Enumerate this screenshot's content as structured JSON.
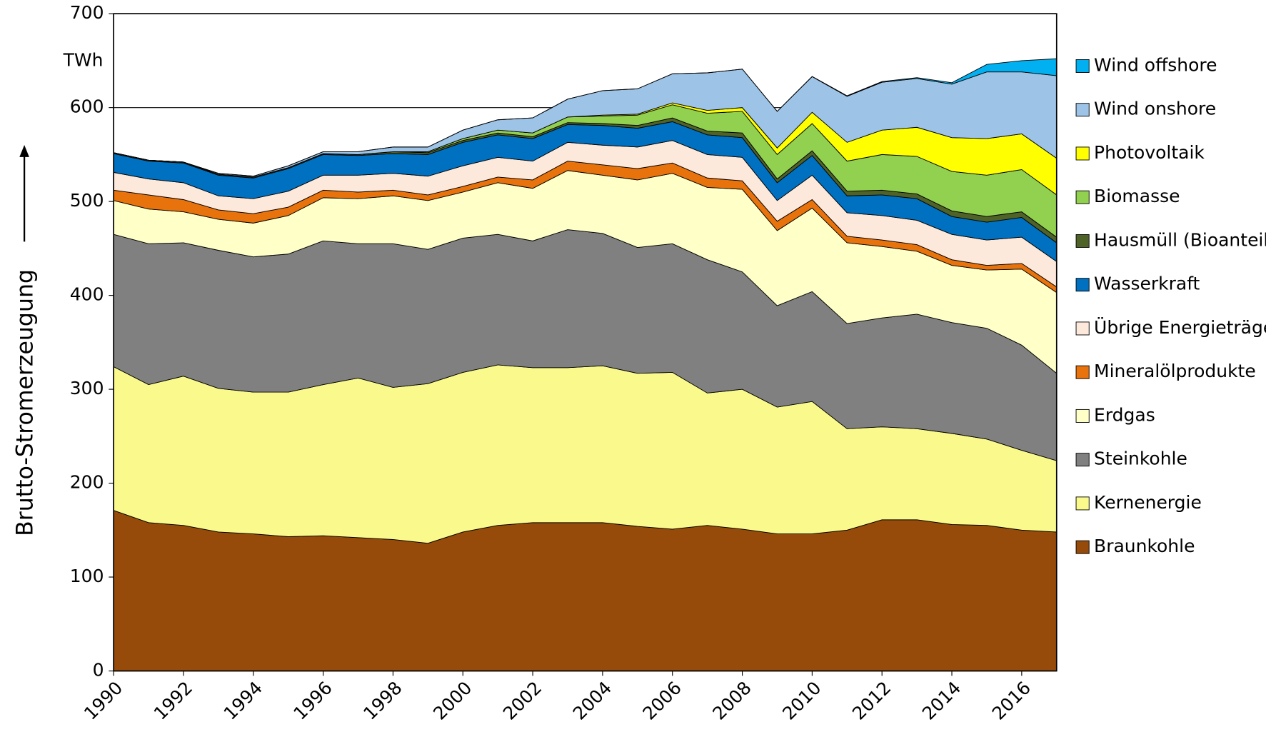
{
  "chart_data": {
    "type": "stacked-area",
    "y_label": "Brutto-Stromerzeugung",
    "unit": "TWh",
    "x": [
      1990,
      1991,
      1992,
      1993,
      1994,
      1995,
      1996,
      1997,
      1998,
      1999,
      2000,
      2001,
      2002,
      2003,
      2004,
      2005,
      2006,
      2007,
      2008,
      2009,
      2010,
      2011,
      2012,
      2013,
      2014,
      2015,
      2016,
      2017
    ],
    "xlim": [
      1990,
      2017
    ],
    "xticks": [
      1990,
      1992,
      1994,
      1996,
      1998,
      2000,
      2002,
      2004,
      2006,
      2008,
      2010,
      2012,
      2014,
      2016
    ],
    "ylim": [
      0,
      700
    ],
    "yticks": [
      0,
      100,
      200,
      300,
      400,
      500,
      600,
      700
    ],
    "grid": true,
    "series": [
      {
        "name": "Braunkohle",
        "color": "#964b0a",
        "values": [
          171,
          158,
          155,
          148,
          146,
          143,
          144,
          142,
          140,
          136,
          148,
          155,
          158,
          158,
          158,
          154,
          151,
          155,
          151,
          146,
          146,
          150,
          161,
          161,
          156,
          155,
          150,
          148
        ]
      },
      {
        "name": "Kernenergie",
        "color": "#fafa8c",
        "values": [
          153,
          147,
          159,
          153,
          151,
          154,
          161,
          170,
          162,
          170,
          170,
          171,
          165,
          165,
          167,
          163,
          167,
          141,
          149,
          135,
          141,
          108,
          99,
          97,
          97,
          92,
          85,
          76
        ]
      },
      {
        "name": "Steinkohle",
        "color": "#808080",
        "values": [
          141,
          150,
          142,
          147,
          144,
          147,
          153,
          143,
          153,
          143,
          143,
          139,
          135,
          147,
          141,
          134,
          137,
          142,
          125,
          108,
          117,
          112,
          116,
          122,
          118,
          118,
          112,
          93
        ]
      },
      {
        "name": "Erdgas",
        "color": "#ffffc8",
        "values": [
          36,
          37,
          33,
          33,
          36,
          41,
          46,
          48,
          51,
          52,
          49,
          55,
          56,
          63,
          62,
          72,
          75,
          77,
          88,
          80,
          89,
          86,
          76,
          67,
          61,
          62,
          81,
          86
        ]
      },
      {
        "name": "Mineralölprodukte",
        "color": "#e8720c",
        "values": [
          11,
          15,
          13,
          10,
          10,
          9,
          8,
          7,
          6,
          6,
          6,
          6,
          9,
          10,
          11,
          12,
          11,
          10,
          9,
          10,
          9,
          7,
          7,
          7,
          6,
          5,
          6,
          6
        ]
      },
      {
        "name": "Übrige Energieträger",
        "color": "#fde9dc",
        "values": [
          19,
          17,
          18,
          15,
          16,
          17,
          16,
          18,
          18,
          20,
          22,
          21,
          20,
          20,
          21,
          23,
          24,
          25,
          25,
          22,
          26,
          25,
          26,
          26,
          27,
          27,
          28,
          27
        ]
      },
      {
        "name": "Wasserkraft",
        "color": "#0070c0",
        "values": [
          20,
          19,
          21,
          22,
          22,
          24,
          22,
          21,
          21,
          23,
          25,
          24,
          24,
          19,
          21,
          20,
          20,
          21,
          21,
          19,
          21,
          18,
          22,
          23,
          19,
          19,
          21,
          20
        ]
      },
      {
        "name": "Hausmüll (Bioanteil)",
        "color": "#4f6228",
        "values": [
          1,
          1,
          1,
          1,
          1,
          1,
          1,
          1,
          2,
          2,
          2,
          2,
          2,
          2,
          2,
          3,
          4,
          4,
          5,
          4,
          5,
          5,
          5,
          5,
          6,
          6,
          6,
          6
        ]
      },
      {
        "name": "Biomasse",
        "color": "#92d050",
        "values": [
          0,
          0,
          0,
          0,
          0,
          0,
          0,
          0,
          0,
          1,
          2,
          3,
          4,
          6,
          8,
          11,
          14,
          19,
          23,
          26,
          29,
          32,
          38,
          40,
          42,
          44,
          45,
          45
        ]
      },
      {
        "name": "Photovoltaik",
        "color": "#ffff00",
        "values": [
          0,
          0,
          0,
          0,
          0,
          0,
          0,
          0,
          0,
          0,
          0,
          0,
          0,
          0,
          1,
          1,
          2,
          3,
          4,
          7,
          12,
          20,
          26,
          31,
          36,
          39,
          38,
          39
        ]
      },
      {
        "name": "Wind onshore",
        "color": "#9dc3e6",
        "values": [
          0,
          0,
          0,
          1,
          1,
          2,
          2,
          3,
          5,
          5,
          9,
          11,
          16,
          19,
          26,
          27,
          31,
          40,
          41,
          39,
          38,
          49,
          51,
          52,
          57,
          71,
          66,
          88
        ]
      },
      {
        "name": "Wind offshore",
        "color": "#00b0f0",
        "values": [
          0,
          0,
          0,
          0,
          0,
          0,
          0,
          0,
          0,
          0,
          0,
          0,
          0,
          0,
          0,
          0,
          0,
          0,
          0,
          0,
          0.2,
          0.6,
          0.7,
          0.9,
          1.5,
          8,
          12,
          18
        ]
      }
    ]
  }
}
